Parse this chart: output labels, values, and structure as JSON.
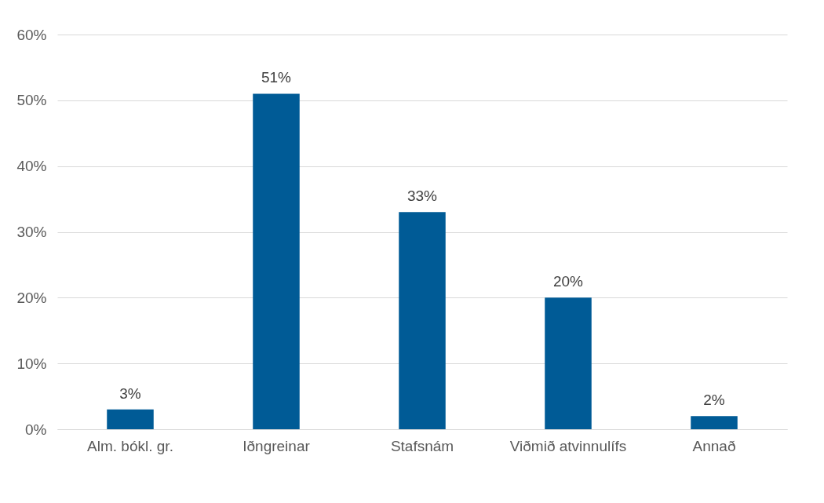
{
  "chart_data": {
    "type": "bar",
    "categories": [
      "Alm. bókl. gr.",
      "Iðngreinar",
      "Stafsnám",
      "Viðmið atvinnulífs",
      "Annað"
    ],
    "values": [
      3,
      51,
      33,
      20,
      2
    ],
    "value_labels": [
      "3%",
      "51%",
      "33%",
      "20%",
      "2%"
    ],
    "color": "#005b96",
    "ylim": [
      0,
      60
    ],
    "yticks": [
      {
        "value": 0,
        "label": "0%"
      },
      {
        "value": 10,
        "label": "10%"
      },
      {
        "value": 20,
        "label": "20%"
      },
      {
        "value": 30,
        "label": "30%"
      },
      {
        "value": 40,
        "label": "40%"
      },
      {
        "value": 50,
        "label": "50%"
      },
      {
        "value": 60,
        "label": "60%"
      }
    ],
    "grid": "y"
  }
}
